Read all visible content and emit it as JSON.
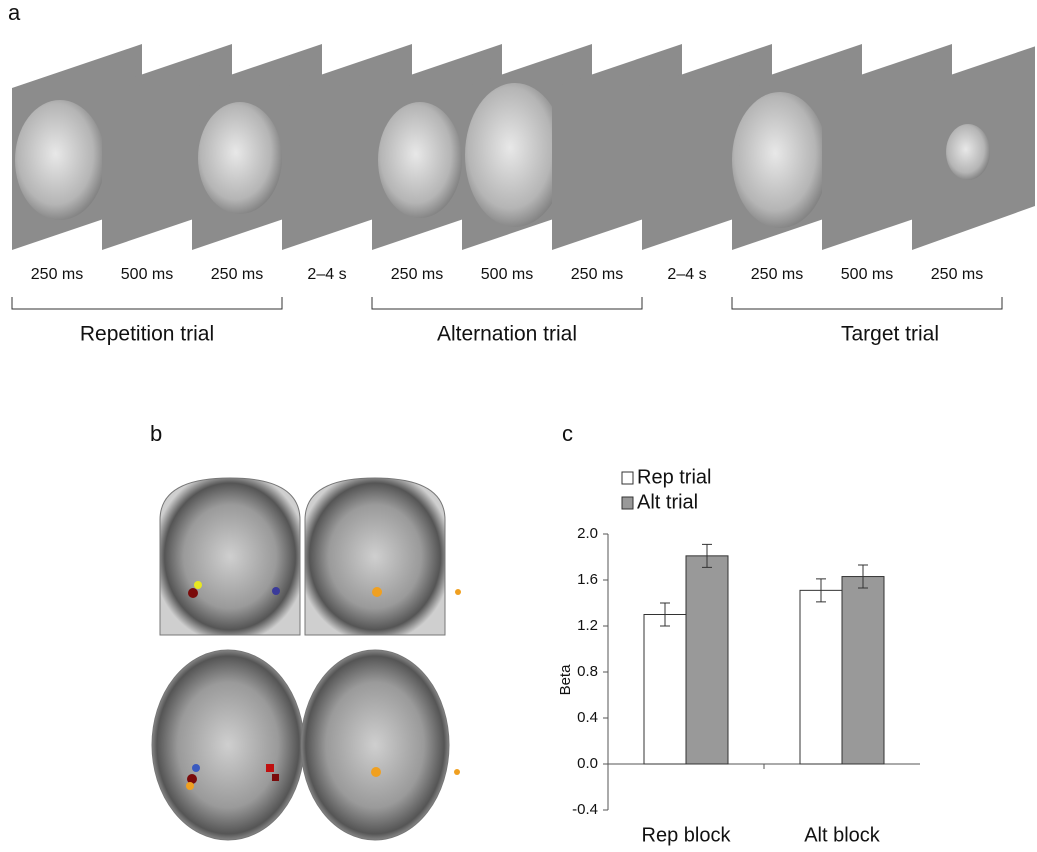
{
  "panel_a": {
    "label": "a",
    "durations": [
      "250 ms",
      "500 ms",
      "250 ms",
      "2–4 s",
      "250 ms",
      "500 ms",
      "250 ms",
      "2–4 s",
      "250 ms",
      "500 ms",
      "250 ms"
    ],
    "trials": [
      "Repetition trial",
      "Alternation trial",
      "Target trial"
    ]
  },
  "panel_b": {
    "label": "b"
  },
  "chart_data": {
    "type": "bar",
    "panel_label": "c",
    "ylabel": "Beta",
    "categories": [
      "Rep block",
      "Alt block"
    ],
    "series": [
      {
        "name": "Rep trial",
        "color": "#ffffff",
        "values": [
          1.3,
          1.51
        ],
        "errors": [
          0.1,
          0.1
        ]
      },
      {
        "name": "Alt trial",
        "color": "#999999",
        "values": [
          1.81,
          1.63
        ],
        "errors": [
          0.1,
          0.1
        ]
      }
    ],
    "ylim": [
      -0.4,
      2.0
    ],
    "yticks": [
      {
        "value": 2.0,
        "label": "2.0"
      },
      1.6,
      1.2,
      0.8,
      0.4,
      {
        "value": 0.0,
        "label": "0.0"
      },
      -0.4
    ]
  }
}
